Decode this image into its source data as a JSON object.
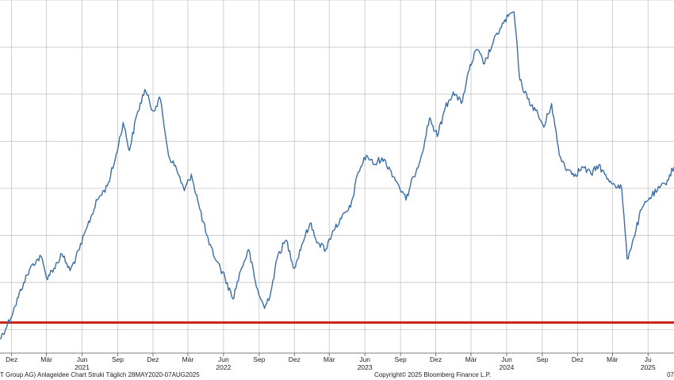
{
  "chart_data": {
    "type": "line",
    "title": "",
    "xlabel": "",
    "ylabel": "",
    "grid": true,
    "x_range": [
      "2020-11-01",
      "2025-08-07"
    ],
    "month_ticks": [
      {
        "label": "Dez",
        "date": "2020-12-01"
      },
      {
        "label": "Mär",
        "date": "2021-03-01"
      },
      {
        "label": "Jun",
        "date": "2021-06-01"
      },
      {
        "label": "Sep",
        "date": "2021-09-01"
      },
      {
        "label": "Dez",
        "date": "2021-12-01"
      },
      {
        "label": "Mär",
        "date": "2022-03-01"
      },
      {
        "label": "Jun",
        "date": "2022-06-01"
      },
      {
        "label": "Sep",
        "date": "2022-09-01"
      },
      {
        "label": "Dez",
        "date": "2022-12-01"
      },
      {
        "label": "Mär",
        "date": "2023-03-01"
      },
      {
        "label": "Jun",
        "date": "2023-06-01"
      },
      {
        "label": "Sep",
        "date": "2023-09-01"
      },
      {
        "label": "Dez",
        "date": "2023-12-01"
      },
      {
        "label": "Mär",
        "date": "2024-03-01"
      },
      {
        "label": "Jun",
        "date": "2024-06-01"
      },
      {
        "label": "Sep",
        "date": "2024-09-01"
      },
      {
        "label": "Dez",
        "date": "2024-12-01"
      },
      {
        "label": "Mär",
        "date": "2025-03-01"
      },
      {
        "label": "Ju",
        "date": "2025-06-01"
      }
    ],
    "year_labels": [
      {
        "label": "2021",
        "date": "2021-06-01"
      },
      {
        "label": "2022",
        "date": "2022-06-01"
      },
      {
        "label": "2023",
        "date": "2023-06-01"
      },
      {
        "label": "2024",
        "date": "2024-06-01"
      },
      {
        "label": "2025",
        "date": "2025-06-01"
      }
    ],
    "series": [
      {
        "name": "",
        "color": "#3a6ea5",
        "points": [
          [
            "2020-11-01",
            4.6
          ],
          [
            "2020-11-20",
            5.2
          ],
          [
            "2020-12-10",
            6.0
          ],
          [
            "2021-01-01",
            7.0
          ],
          [
            "2021-01-25",
            7.8
          ],
          [
            "2021-02-15",
            8.1
          ],
          [
            "2021-03-01",
            7.2
          ],
          [
            "2021-03-20",
            7.6
          ],
          [
            "2021-04-10",
            8.2
          ],
          [
            "2021-05-01",
            7.5
          ],
          [
            "2021-05-25",
            8.4
          ],
          [
            "2021-06-15",
            9.4
          ],
          [
            "2021-07-10",
            10.5
          ],
          [
            "2021-08-05",
            11.1
          ],
          [
            "2021-08-25",
            12.2
          ],
          [
            "2021-09-15",
            13.8
          ],
          [
            "2021-10-01",
            12.6
          ],
          [
            "2021-10-20",
            14.1
          ],
          [
            "2021-11-10",
            15.2
          ],
          [
            "2021-11-30",
            14.3
          ],
          [
            "2021-12-20",
            14.8
          ],
          [
            "2022-01-10",
            12.4
          ],
          [
            "2022-01-31",
            11.8
          ],
          [
            "2022-02-20",
            10.9
          ],
          [
            "2022-03-10",
            11.6
          ],
          [
            "2022-04-01",
            10.1
          ],
          [
            "2022-04-25",
            8.6
          ],
          [
            "2022-05-15",
            7.9
          ],
          [
            "2022-06-05",
            7.2
          ],
          [
            "2022-06-25",
            6.3
          ],
          [
            "2022-07-15",
            7.5
          ],
          [
            "2022-08-05",
            8.4
          ],
          [
            "2022-08-25",
            6.8
          ],
          [
            "2022-09-15",
            5.9
          ],
          [
            "2022-10-01",
            6.6
          ],
          [
            "2022-10-20",
            8.2
          ],
          [
            "2022-11-10",
            8.8
          ],
          [
            "2022-12-01",
            7.6
          ],
          [
            "2022-12-20",
            8.6
          ],
          [
            "2023-01-10",
            9.5
          ],
          [
            "2023-01-31",
            8.7
          ],
          [
            "2023-02-20",
            8.4
          ],
          [
            "2023-03-10",
            9.2
          ],
          [
            "2023-04-01",
            9.7
          ],
          [
            "2023-04-25",
            10.2
          ],
          [
            "2023-05-15",
            11.7
          ],
          [
            "2023-06-05",
            12.4
          ],
          [
            "2023-06-25",
            12.0
          ],
          [
            "2023-07-15",
            12.3
          ],
          [
            "2023-08-05",
            11.8
          ],
          [
            "2023-08-25",
            11.2
          ],
          [
            "2023-09-15",
            10.5
          ],
          [
            "2023-10-05",
            11.5
          ],
          [
            "2023-10-25",
            12.4
          ],
          [
            "2023-11-15",
            14.0
          ],
          [
            "2023-12-05",
            13.2
          ],
          [
            "2023-12-25",
            14.4
          ],
          [
            "2024-01-15",
            15.1
          ],
          [
            "2024-02-05",
            14.6
          ],
          [
            "2024-02-25",
            16.0
          ],
          [
            "2024-03-15",
            16.9
          ],
          [
            "2024-04-05",
            16.3
          ],
          [
            "2024-04-25",
            17.1
          ],
          [
            "2024-05-15",
            17.8
          ],
          [
            "2024-06-05",
            18.3
          ],
          [
            "2024-06-20",
            18.5
          ],
          [
            "2024-07-05",
            15.6
          ],
          [
            "2024-07-25",
            14.8
          ],
          [
            "2024-08-15",
            14.3
          ],
          [
            "2024-09-05",
            13.6
          ],
          [
            "2024-09-25",
            14.6
          ],
          [
            "2024-10-15",
            12.4
          ],
          [
            "2024-11-05",
            11.8
          ],
          [
            "2024-11-25",
            11.6
          ],
          [
            "2024-12-15",
            11.9
          ],
          [
            "2025-01-05",
            11.6
          ],
          [
            "2025-01-25",
            12.0
          ],
          [
            "2025-02-15",
            11.4
          ],
          [
            "2025-03-05",
            11.2
          ],
          [
            "2025-03-25",
            11.0
          ],
          [
            "2025-04-08",
            8.0
          ],
          [
            "2025-04-25",
            8.9
          ],
          [
            "2025-05-15",
            10.1
          ],
          [
            "2025-06-05",
            10.6
          ],
          [
            "2025-06-25",
            10.9
          ],
          [
            "2025-07-15",
            11.2
          ],
          [
            "2025-08-07",
            11.9
          ]
        ]
      }
    ],
    "reference_lines": [
      {
        "value": 5.3,
        "color": "#cc1f1a"
      }
    ]
  },
  "footer": {
    "left": "T Group AG) Anlageidee Chart Struki  Täglich 28MAY2020-07AUG2025",
    "center": "Copyright© 2025 Bloomberg Finance L.P.",
    "right": "07"
  }
}
